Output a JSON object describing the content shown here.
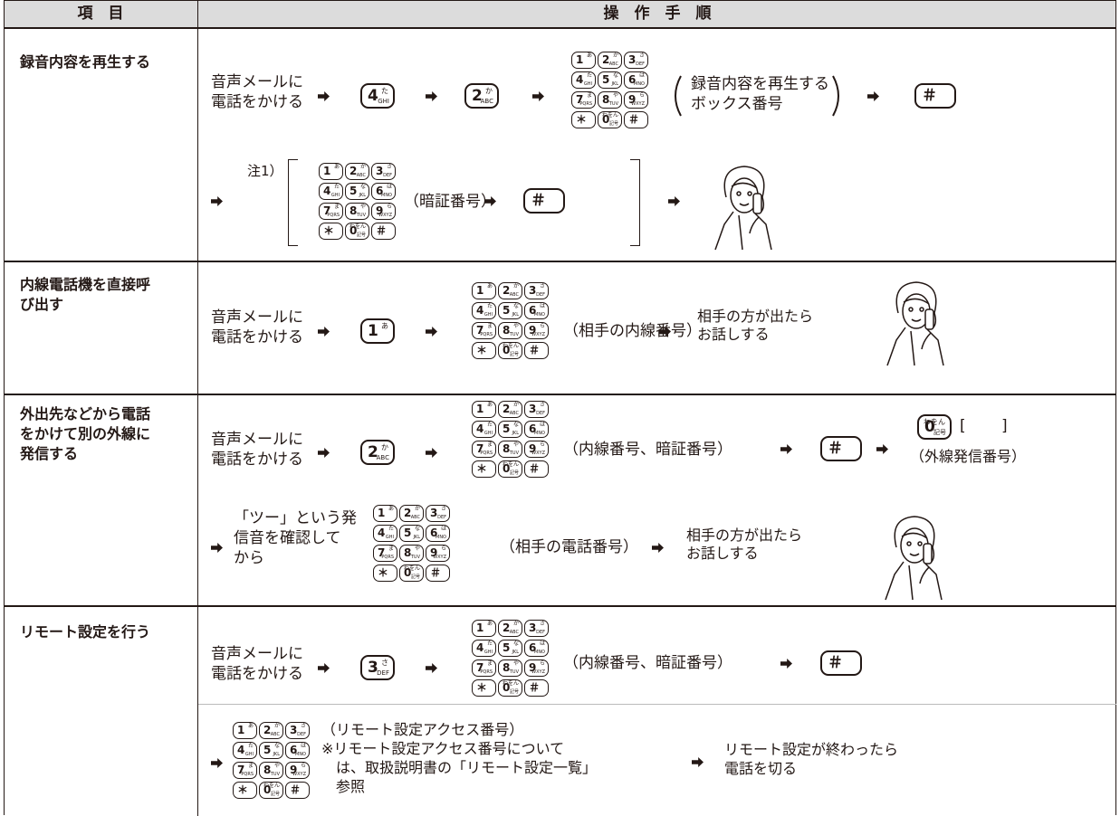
{
  "header": {
    "item": "項　目",
    "procedure": "操　作　手　順"
  },
  "keypad": {
    "keys": [
      {
        "digit": "1",
        "kana": "あ"
      },
      {
        "digit": "2",
        "kana": "か",
        "letters": "ABC"
      },
      {
        "digit": "3",
        "kana": "さ",
        "letters": "DEF"
      },
      {
        "digit": "4",
        "kana": "た",
        "letters": "GHI"
      },
      {
        "digit": "5",
        "kana": "な",
        "letters": "JKL"
      },
      {
        "digit": "6",
        "kana": "は",
        "letters": "MNO"
      },
      {
        "digit": "7",
        "kana": "ま",
        "letters": "PQRS"
      },
      {
        "digit": "8",
        "kana": "や",
        "letters": "TUV"
      },
      {
        "digit": "9",
        "kana": "ら",
        "letters": "WXYZ"
      },
      {
        "digit": "＊"
      },
      {
        "digit": "0",
        "kana": "わをん",
        "letters": "記号"
      },
      {
        "digit": "＃"
      }
    ]
  },
  "rows": [
    {
      "item": [
        "録音内容を再生する"
      ],
      "call": [
        "音声メールに",
        "電話をかける"
      ],
      "box": [
        "録音内容を再生する",
        "ボックス番号"
      ],
      "note": "注1）",
      "pin": "（暗証番号）"
    },
    {
      "item": [
        "内線電話機を直接呼",
        "び出す"
      ],
      "call": [
        "音声メールに",
        "電話をかける"
      ],
      "ext": "（相手の内線番号）",
      "talk": [
        "相手の方が出たら",
        "お話しする"
      ]
    },
    {
      "item": [
        "外出先などから電話",
        "をかけて別の外線に",
        "発信する"
      ],
      "call": [
        "音声メールに",
        "電話をかける"
      ],
      "ext": "（内線番号、暗証番号）",
      "bracket": "[　　 ]",
      "outline": "（外線発信番号）",
      "tone": [
        "「ツー」という発",
        "信音を確認して",
        "から"
      ],
      "number": "（相手の電話番号）",
      "talk": [
        "相手の方が出たら",
        "お話しする"
      ]
    },
    {
      "item": [
        "リモート設定を行う"
      ],
      "call": [
        "音声メールに",
        "電話をかける"
      ],
      "ext": "（内線番号、暗証番号）",
      "access": [
        "（リモート設定アクセス番号）",
        "※リモート設定アクセス番号について",
        "　は、取扱説明書の「リモート設定一覧」",
        "　参照"
      ],
      "end": [
        "リモート設定が終わったら",
        "電話を切る"
      ]
    }
  ]
}
